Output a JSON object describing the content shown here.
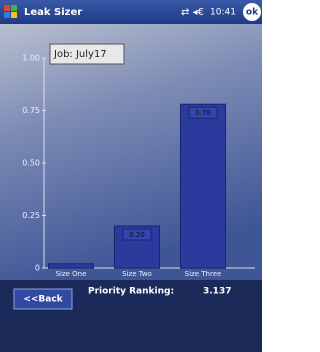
{
  "title_bar": {
    "app_name": "Leak Sizer",
    "time": "10:41",
    "ok": "ok"
  },
  "chart_data": {
    "type": "bar",
    "annotation": "Job: July17",
    "categories": [
      "Size One",
      "Size Two",
      "Size Three"
    ],
    "values": [
      0.02,
      0.2,
      0.78
    ],
    "value_labels": [
      null,
      "0.20",
      "0.78"
    ],
    "color": "#2b3a9c",
    "ylim": [
      0,
      1
    ],
    "yticks": [
      0,
      {
        "value": 0.25,
        "label": "0.25"
      },
      {
        "value": 0.5,
        "label": "0.50"
      },
      {
        "value": 0.75,
        "label": "0.75"
      },
      {
        "value": 1,
        "label": "1.00"
      }
    ]
  },
  "footer": {
    "back_button": "<<Back",
    "ranking_label": "Priority Ranking:",
    "ranking_value": "3.137"
  }
}
